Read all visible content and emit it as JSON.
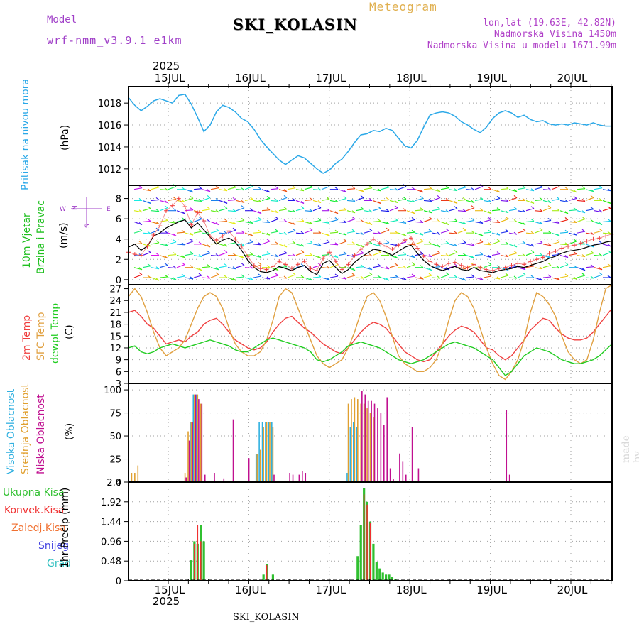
{
  "header": {
    "model_label": "Model",
    "model_name": "wrf-nmm_v3.9.1 e1km",
    "title": "SKI_KOLASIN",
    "subtitle": "Meteogram",
    "coords": "lon,lat (19.63E, 42.82N)",
    "elevation": "Nadmorska Visina 1450m",
    "model_elevation": "Nadmorska Visina u modelu 1671.99m",
    "watermark": "made by Angel"
  },
  "time_axis": {
    "year": "2025",
    "days": [
      "15JUL",
      "16JUL",
      "17JUL",
      "18JUL",
      "19JUL",
      "20JUL"
    ]
  },
  "footer": {
    "title": "SKI_KOLASIN"
  },
  "colors": {
    "pressure": "#2aa8e8",
    "temp2m": "#f04040",
    "sfc": "#e0a040",
    "dewpt": "#20cc20",
    "high_cloud": "#30b0e0",
    "mid_cloud": "#e0a030",
    "low_cloud": "#c01090",
    "total_rain": "#30c030",
    "conv_rain": "#f03030",
    "frozen_rain": "#f07030",
    "snow": "#4040e0",
    "graupel": "#30c0c0",
    "wind_speed": "#000000",
    "gust": "#f04040"
  },
  "panels": {
    "pressure": {
      "label": "Pritisak na nivou mora",
      "unit": "(hPa)",
      "ticks": [
        "1012",
        "1014",
        "1016",
        "1018"
      ]
    },
    "wind": {
      "label1": "10m Vjetar",
      "label2": "Brzina i Pravac",
      "unit": "(m/s)",
      "compass_n": "N",
      "compass_e": "E",
      "compass_w": "W",
      "compass_s": "S",
      "ticks": [
        "0",
        "2",
        "4",
        "6",
        "8"
      ]
    },
    "temp": {
      "label1": "2m Temp",
      "label2": "SFC Temp",
      "label3": "dewpt Temp",
      "unit": "(C)",
      "ticks": [
        "3",
        "6",
        "9",
        "12",
        "15",
        "18",
        "21",
        "24",
        "27"
      ]
    },
    "cloud": {
      "label1": "Visoka Oblacnost",
      "label2": "Srednja Oblacnost",
      "label3": "Niska Oblacnost",
      "unit": "(%)",
      "ticks": [
        "0",
        "25",
        "50",
        "75",
        "100"
      ]
    },
    "precip": {
      "legend": [
        "Ukupna Kisa",
        "Konvek.Kisa",
        "Zaledj.Kisa",
        "Snijeg",
        "Grad"
      ],
      "unit": "1hr Precip (mm)",
      "ticks": [
        "0",
        "0.48",
        "0.96",
        "1.44",
        "1.92",
        "2.4"
      ]
    }
  },
  "chart_data": [
    {
      "type": "line",
      "name": "sea-level-pressure",
      "ylabel": "Pritisak na nivou mora (hPa)",
      "ylim": [
        1010.5,
        1019.5
      ],
      "x_hours": [
        0,
        2,
        4,
        6,
        8,
        10,
        12,
        14,
        16,
        18,
        20,
        22,
        24,
        26,
        28,
        30,
        32,
        34,
        36,
        38,
        40,
        42,
        44,
        46,
        48,
        50,
        52,
        54,
        56,
        58,
        60,
        62,
        64,
        66,
        68,
        70,
        72,
        74,
        76,
        78,
        80,
        82,
        84,
        86,
        88,
        90,
        92,
        94,
        96,
        98,
        100,
        102,
        104,
        106,
        108,
        110,
        112,
        114,
        116,
        118,
        120,
        122,
        124,
        126,
        128,
        130,
        132,
        134,
        136,
        138,
        140,
        142,
        144,
        146,
        148,
        150,
        152,
        154
      ],
      "values": [
        1018.5,
        1017.8,
        1017.3,
        1017.7,
        1018.2,
        1018.4,
        1018.2,
        1018.0,
        1018.7,
        1018.8,
        1017.9,
        1016.7,
        1015.4,
        1016.0,
        1017.2,
        1017.8,
        1017.6,
        1017.2,
        1016.6,
        1016.3,
        1015.6,
        1014.7,
        1014.0,
        1013.4,
        1012.8,
        1012.4,
        1012.8,
        1013.2,
        1013.0,
        1012.5,
        1012.0,
        1011.6,
        1011.9,
        1012.5,
        1012.9,
        1013.6,
        1014.4,
        1015.1,
        1015.2,
        1015.5,
        1015.4,
        1015.7,
        1015.5,
        1014.8,
        1014.1,
        1013.9,
        1014.6,
        1015.8,
        1016.9,
        1017.1,
        1017.2,
        1017.1,
        1016.8,
        1016.3,
        1016.0,
        1015.6,
        1015.3,
        1015.8,
        1016.6,
        1017.1,
        1017.3,
        1017.1,
        1016.7,
        1016.9,
        1016.5,
        1016.3,
        1016.4,
        1016.1,
        1016.0,
        1016.1,
        1016.0,
        1016.2,
        1016.1,
        1016.0,
        1016.2,
        1016.0,
        1015.9,
        1015.9
      ]
    },
    {
      "type": "line",
      "name": "10m-wind",
      "ylabel": "10m Vjetar Brzina i Pravac (m/s)",
      "ylim": [
        -0.5,
        9.3
      ],
      "series": [
        {
          "name": "wind-speed",
          "values": [
            3.2,
            3.5,
            2.9,
            3.3,
            4.3,
            4.6,
            5.1,
            5.4,
            5.7,
            5.9,
            5.1,
            5.6,
            4.9,
            4.2,
            3.5,
            3.9,
            4.1,
            3.7,
            2.9,
            1.9,
            1.2,
            0.8,
            0.7,
            0.9,
            1.3,
            1.1,
            0.9,
            1.2,
            1.4,
            0.8,
            0.5,
            1.6,
            1.9,
            1.2,
            0.6,
            1.0,
            1.7,
            2.2,
            2.6,
            3.0,
            2.9,
            2.7,
            2.4,
            2.8,
            3.2,
            3.4,
            2.6,
            1.9,
            1.4,
            1.1,
            0.9,
            1.1,
            1.3,
            1.0,
            0.9,
            1.2,
            0.9,
            0.8,
            0.7,
            0.9,
            1.0,
            1.1,
            1.3,
            1.2,
            1.4,
            1.6,
            1.8,
            2.1,
            2.3,
            2.6,
            2.8,
            2.9,
            3.0,
            3.2,
            3.4,
            3.5,
            3.7,
            3.8
          ]
        },
        {
          "name": "gust",
          "values": [
            2.7,
            2.5,
            2.4,
            3.3,
            4.4,
            5.3,
            6.8,
            7.3,
            8.0,
            7.2,
            5.4,
            6.6,
            5.8,
            4.3,
            3.9,
            4.3,
            4.8,
            4.0,
            3.3,
            2.3,
            1.4,
            1.1,
            1.0,
            1.3,
            1.8,
            1.5,
            1.1,
            1.5,
            1.8,
            1.1,
            0.9,
            2.1,
            2.7,
            1.8,
            1.0,
            1.5,
            2.4,
            3.0,
            3.5,
            4.0,
            3.6,
            3.3,
            3.0,
            3.4,
            3.9,
            4.1,
            3.1,
            2.3,
            1.8,
            1.5,
            1.3,
            1.6,
            1.7,
            1.4,
            1.2,
            1.5,
            1.2,
            1.0,
            0.9,
            1.1,
            1.2,
            1.4,
            1.6,
            1.5,
            1.8,
            2.0,
            2.2,
            2.6,
            2.8,
            3.1,
            3.3,
            3.4,
            3.6,
            3.8,
            4.0,
            4.1,
            4.3,
            4.5
          ]
        }
      ]
    },
    {
      "type": "line",
      "name": "temperature",
      "ylabel": "(C)",
      "ylim": [
        3,
        28
      ],
      "series": [
        {
          "name": "2m Temp",
          "values": [
            21,
            21.5,
            20,
            18,
            17,
            15,
            13,
            13.5,
            14,
            13.5,
            15,
            16,
            18,
            19,
            19.5,
            18,
            16,
            14,
            13,
            12,
            11.5,
            12,
            13.5,
            16,
            18,
            19.5,
            20,
            18.5,
            17,
            16,
            14.5,
            13,
            12,
            11,
            10.5,
            12,
            14,
            16,
            17.5,
            18.5,
            18,
            17,
            15,
            13,
            11,
            10,
            9,
            8.5,
            9,
            11,
            13,
            15,
            16.5,
            17.5,
            17,
            16,
            14,
            12,
            11.5,
            10,
            9,
            10,
            12,
            14,
            16.5,
            18,
            19.5,
            19,
            17,
            15.5,
            14.5,
            14,
            14,
            14.5,
            16,
            18,
            20,
            22
          ]
        },
        {
          "name": "SFC Temp",
          "values": [
            25,
            27,
            25,
            21,
            16,
            12,
            10,
            11,
            12,
            14,
            18,
            22,
            25,
            26,
            25,
            22,
            17,
            13,
            11,
            10,
            10,
            11,
            14,
            19,
            25,
            27,
            26,
            22,
            18,
            14,
            10,
            8,
            7,
            8,
            9,
            12,
            16,
            21,
            25,
            26,
            24,
            20,
            15,
            10,
            8,
            7,
            6,
            6,
            7,
            9,
            13,
            19,
            24,
            26,
            25,
            22,
            17,
            12,
            8,
            5,
            4,
            6,
            9,
            14,
            21,
            26,
            25,
            23,
            20,
            15,
            11,
            9,
            8,
            9,
            14,
            21,
            27,
            28
          ]
        },
        {
          "name": "dewpt Temp",
          "values": [
            12,
            12.5,
            11,
            10.5,
            11,
            12,
            12.5,
            13,
            12.5,
            12,
            12.5,
            13,
            13.5,
            14,
            13.5,
            13,
            12.5,
            11.5,
            11,
            11,
            12,
            13,
            14,
            14.5,
            14,
            13.5,
            13,
            12.5,
            12,
            11,
            9,
            8.5,
            9,
            10,
            11,
            12.5,
            13,
            13.5,
            13,
            12.5,
            12,
            11,
            10,
            9,
            8.5,
            8,
            8.5,
            9,
            10,
            11,
            12,
            13,
            13.5,
            13,
            12.5,
            12,
            11,
            10,
            9,
            7,
            5,
            6,
            8,
            10,
            11,
            12,
            11.5,
            11,
            10,
            9,
            8.5,
            8,
            8,
            8.5,
            9,
            10,
            11.5,
            13
          ]
        }
      ]
    },
    {
      "type": "bar",
      "name": "cloud-cover",
      "ylabel": "(%)",
      "ylim": [
        0,
        100
      ],
      "series": [
        {
          "name": "Visoka Oblacnost",
          "x_hours": [
            20,
            21,
            22,
            41,
            42,
            43,
            44,
            45,
            46,
            70,
            71,
            72,
            73
          ],
          "values": [
            65,
            95,
            95,
            30,
            65,
            65,
            65,
            65,
            65,
            10,
            60,
            65,
            60
          ]
        },
        {
          "name": "Srednja Oblacnost",
          "x_hours": [
            0,
            1,
            2,
            3,
            18,
            19,
            20,
            21,
            22,
            23,
            41,
            42,
            43,
            44,
            45,
            46,
            70,
            71,
            72,
            73,
            74,
            75,
            76,
            77,
            78
          ],
          "values": [
            24,
            10,
            10,
            18,
            10,
            55,
            65,
            95,
            95,
            85,
            30,
            35,
            60,
            65,
            65,
            60,
            85,
            90,
            92,
            90,
            85,
            85,
            80,
            75,
            70
          ]
        },
        {
          "name": "Niska Oblacnost",
          "x_hours": [
            18,
            19,
            20,
            21,
            22,
            23,
            24,
            27,
            30,
            33,
            38,
            46,
            51,
            52,
            54,
            55,
            56,
            74,
            75,
            76,
            77,
            78,
            79,
            80,
            81,
            82,
            83,
            84,
            86,
            87,
            88,
            90,
            92,
            120,
            121
          ],
          "values": [
            5,
            45,
            65,
            95,
            90,
            85,
            8,
            10,
            4,
            68,
            26,
            8,
            10,
            8,
            8,
            12,
            10,
            99,
            95,
            88,
            88,
            85,
            80,
            75,
            62,
            92,
            15,
            3,
            31,
            22,
            8,
            60,
            15,
            78,
            8
          ]
        }
      ]
    },
    {
      "type": "bar",
      "name": "precipitation",
      "ylabel": "1hr Precip (mm)",
      "ylim": [
        0,
        2.4
      ],
      "series": [
        {
          "name": "Ukupna Kisa",
          "x_hours": [
            20,
            21,
            22,
            23,
            24,
            43,
            44,
            46,
            73,
            74,
            75,
            76,
            77,
            78,
            79,
            80,
            81,
            82,
            83,
            84,
            85
          ],
          "values": [
            0.5,
            0.96,
            0.9,
            1.35,
            0.96,
            0.15,
            0.4,
            0.15,
            0.6,
            1.35,
            2.25,
            1.92,
            1.44,
            0.9,
            0.45,
            0.3,
            0.2,
            0.15,
            0.15,
            0.1,
            0.05
          ]
        },
        {
          "name": "Konvek.Kisa",
          "x_hours": [
            21,
            22,
            23,
            44,
            75,
            76,
            77
          ],
          "values": [
            0.9,
            1.35,
            0.96,
            0.38,
            2.1,
            1.85,
            1.4
          ]
        }
      ]
    }
  ]
}
